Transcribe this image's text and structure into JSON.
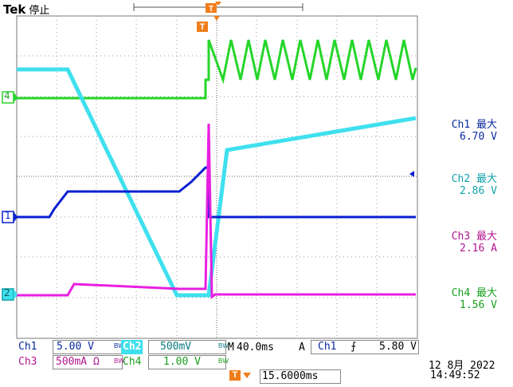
{
  "header": {
    "brand": "Tek",
    "status": "停止"
  },
  "markers": {
    "trigger": "T",
    "ch4": "4",
    "ch1": "1",
    "ch2": "2"
  },
  "measurements": [
    {
      "title": "Ch1 最大",
      "value": "6.70 V",
      "color": "#0a2a9e"
    },
    {
      "title": "Ch2 最大",
      "value": "2.86 V",
      "color": "#0fa0a8"
    },
    {
      "title": "Ch3 最大",
      "value": "2.16 A",
      "color": "#b0168f"
    },
    {
      "title": "Ch4 最大",
      "value": "1.56 V",
      "color": "#18a01c"
    }
  ],
  "channels": {
    "ch1": {
      "name": "Ch1",
      "scale": "5.00 V",
      "bw": "BW"
    },
    "ch2": {
      "name": "Ch2",
      "scale": "500mV",
      "bw": "BW"
    },
    "ch3": {
      "name": "Ch3",
      "scale": "500mA Ω",
      "bw": "BW"
    },
    "ch4": {
      "name": "Ch4",
      "scale": "1.00 V",
      "bw": "BW"
    }
  },
  "horizontal": {
    "mark": "M",
    "timebase": "40.0ms",
    "mode": "A",
    "trig_src": "Ch1",
    "trig_slope": "⨍",
    "trig_level": "5.80 V"
  },
  "delay": {
    "value": "15.6000ms"
  },
  "datetime": {
    "date": "12 8月  2022",
    "time": "14:49:52"
  },
  "colors": {
    "ch1": "#0b1fd0",
    "ch2": "#3fe0ee",
    "ch3": "#e81fe0",
    "ch4": "#25d62a",
    "trigger": "#f07d1a",
    "grid": "#777777"
  }
}
